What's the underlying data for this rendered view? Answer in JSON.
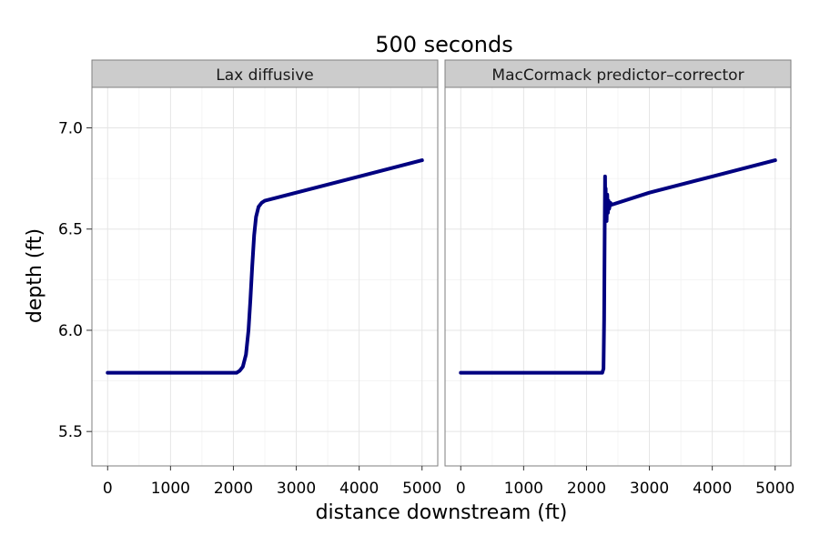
{
  "chart_data": {
    "type": "line",
    "title": "500 seconds",
    "xlabel": "distance  downstream  (ft)",
    "ylabel": "depth  (ft)",
    "xlim": [
      -250,
      5250
    ],
    "ylim": [
      5.33,
      7.2
    ],
    "x_ticks": [
      0,
      1000,
      2000,
      3000,
      4000,
      5000
    ],
    "y_ticks": [
      5.5,
      6.0,
      6.5,
      7.0
    ],
    "x_tick_labels": [
      "0",
      "1000",
      "2000",
      "3000",
      "4000",
      "5000"
    ],
    "y_tick_labels": [
      "5.5",
      "6.0",
      "6.5",
      "7.0"
    ],
    "grid": true,
    "line_color": "#000080",
    "panels": [
      {
        "name": "Lax diffusive",
        "x": [
          0,
          1000,
          1950,
          2050,
          2100,
          2150,
          2200,
          2240,
          2270,
          2300,
          2330,
          2360,
          2400,
          2450,
          2500,
          3000,
          4000,
          5000
        ],
        "y": [
          5.79,
          5.79,
          5.79,
          5.79,
          5.8,
          5.82,
          5.88,
          6.0,
          6.15,
          6.32,
          6.47,
          6.56,
          6.61,
          6.63,
          6.64,
          6.68,
          6.76,
          6.84
        ]
      },
      {
        "name": "MacCormack predictor–corrector",
        "x": [
          0,
          1000,
          2000,
          2250,
          2270,
          2280,
          2290,
          2295,
          2300,
          2305,
          2310,
          2315,
          2320,
          2330,
          2340,
          2350,
          2360,
          2380,
          2400,
          3000,
          4000,
          5000
        ],
        "y": [
          5.79,
          5.79,
          5.79,
          5.79,
          5.81,
          6.05,
          6.55,
          6.76,
          6.55,
          6.7,
          6.56,
          6.66,
          6.54,
          6.67,
          6.58,
          6.64,
          6.6,
          6.63,
          6.62,
          6.68,
          6.76,
          6.84
        ]
      }
    ]
  }
}
